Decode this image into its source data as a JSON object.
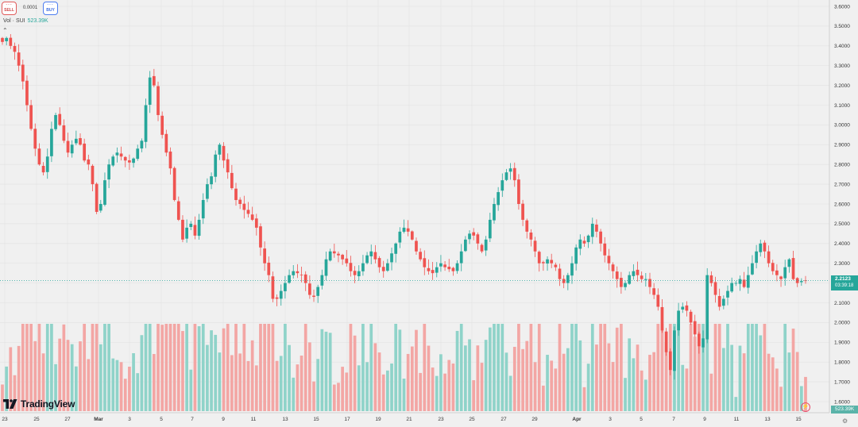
{
  "toolbar": {
    "sell": {
      "dashes": "---",
      "label": "SELL"
    },
    "spread": "0.0001",
    "buy": {
      "dashes": "---",
      "label": "BUY"
    }
  },
  "volume_legend": {
    "label": "Vol · SUI",
    "value": "523.39K"
  },
  "logo": {
    "text": "TradingView"
  },
  "price_axis": {
    "labels": [
      "3.6000",
      "3.5000",
      "3.4000",
      "3.3000",
      "3.2000",
      "3.1000",
      "3.0000",
      "2.9000",
      "2.8000",
      "2.7000",
      "2.6000",
      "2.5000",
      "2.4000",
      "2.3000",
      "2.2000",
      "2.1000",
      "2.0000",
      "1.9000",
      "1.8000",
      "1.7000",
      "1.6000"
    ],
    "last_price": "2.2123",
    "countdown": "03:39:18",
    "volume_tag": "523.39K"
  },
  "time_axis": [
    "23",
    "25",
    "27",
    "Mar",
    "3",
    "5",
    "7",
    "9",
    "11",
    "13",
    "15",
    "17",
    "19",
    "21",
    "23",
    "25",
    "27",
    "29",
    "Apr",
    "3",
    "5",
    "7",
    "9",
    "11",
    "13",
    "15"
  ],
  "colors": {
    "up": "#26a69a",
    "down": "#ef5350",
    "vol_up": "#8fd3c9",
    "vol_down": "#f3a6a4",
    "grid": "#e2e2e2",
    "last_line": "#26a69a"
  },
  "icons": {
    "collapse": "chevron-up-icon",
    "alert": "lightning-icon",
    "settings": "gear-icon"
  },
  "chart_data": {
    "type": "candlestick",
    "symbol": "SUI",
    "interval": "4h",
    "ylim": [
      1.6,
      3.6
    ],
    "grid": true,
    "close_series": [
      3.42,
      3.44,
      3.4,
      3.37,
      3.3,
      3.22,
      3.1,
      2.98,
      2.88,
      2.8,
      2.76,
      2.84,
      2.98,
      3.05,
      3.0,
      2.92,
      2.86,
      2.9,
      2.93,
      2.9,
      2.82,
      2.8,
      2.7,
      2.56,
      2.6,
      2.72,
      2.8,
      2.84,
      2.86,
      2.84,
      2.82,
      2.81,
      2.83,
      2.88,
      2.92,
      3.1,
      3.24,
      3.2,
      3.05,
      2.95,
      2.86,
      2.78,
      2.62,
      2.52,
      2.42,
      2.48,
      2.5,
      2.44,
      2.52,
      2.62,
      2.7,
      2.74,
      2.85,
      2.9,
      2.82,
      2.76,
      2.68,
      2.62,
      2.6,
      2.57,
      2.55,
      2.52,
      2.48,
      2.38,
      2.3,
      2.24,
      2.12,
      2.12,
      2.16,
      2.2,
      2.24,
      2.26,
      2.25,
      2.24,
      2.2,
      2.14,
      2.13,
      2.18,
      2.24,
      2.32,
      2.36,
      2.35,
      2.34,
      2.32,
      2.3,
      2.26,
      2.24,
      2.26,
      2.3,
      2.34,
      2.36,
      2.32,
      2.28,
      2.26,
      2.3,
      2.35,
      2.4,
      2.46,
      2.48,
      2.46,
      2.42,
      2.36,
      2.32,
      2.28,
      2.26,
      2.25,
      2.28,
      2.3,
      2.28,
      2.27,
      2.26,
      2.3,
      2.36,
      2.42,
      2.45,
      2.44,
      2.4,
      2.36,
      2.42,
      2.52,
      2.6,
      2.66,
      2.72,
      2.76,
      2.78,
      2.72,
      2.6,
      2.52,
      2.46,
      2.42,
      2.36,
      2.3,
      2.3,
      2.32,
      2.3,
      2.28,
      2.22,
      2.2,
      2.24,
      2.3,
      2.38,
      2.42,
      2.4,
      2.44,
      2.5,
      2.46,
      2.4,
      2.34,
      2.3,
      2.26,
      2.22,
      2.18,
      2.2,
      2.24,
      2.26,
      2.24,
      2.22,
      2.22,
      2.18,
      2.14,
      2.08,
      1.96,
      1.85,
      1.76,
      1.96,
      2.06,
      2.08,
      2.06,
      2.0,
      1.94,
      1.88,
      1.92,
      2.24,
      2.2,
      2.14,
      2.08,
      2.12,
      2.16,
      2.2,
      2.2,
      2.22,
      2.18,
      2.24,
      2.3,
      2.36,
      2.4,
      2.36,
      2.3,
      2.26,
      2.24,
      2.22,
      2.28,
      2.32,
      2.22,
      2.2,
      2.21,
      2.2123
    ]
  }
}
